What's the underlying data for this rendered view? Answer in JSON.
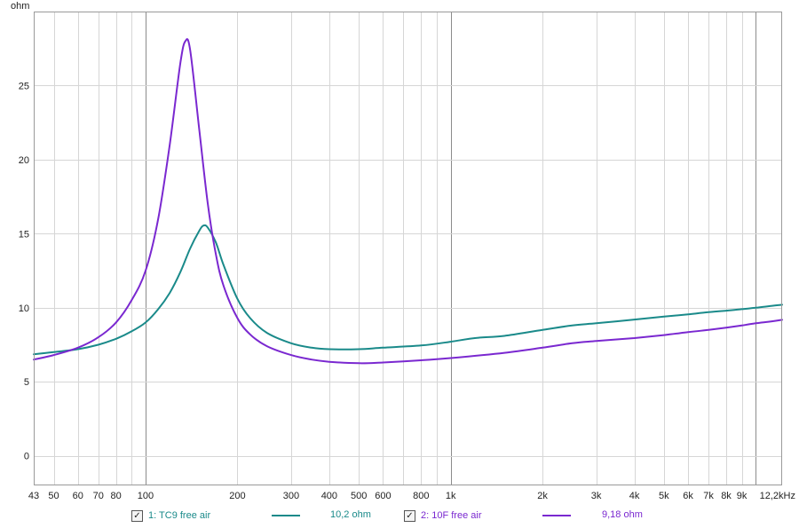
{
  "chart_data": {
    "type": "line",
    "y_unit_label": "ohm",
    "x_scale": "log",
    "xlim": [
      43,
      12200
    ],
    "ylim": [
      -2,
      30
    ],
    "grid": true,
    "x_ticks": [
      {
        "value": 43,
        "label": "43"
      },
      {
        "value": 50,
        "label": "50"
      },
      {
        "value": 60,
        "label": "60"
      },
      {
        "value": 70,
        "label": "70"
      },
      {
        "value": 80,
        "label": "80"
      },
      {
        "value": 100,
        "label": "100"
      },
      {
        "value": 200,
        "label": "200"
      },
      {
        "value": 300,
        "label": "300"
      },
      {
        "value": 400,
        "label": "400"
      },
      {
        "value": 500,
        "label": "500"
      },
      {
        "value": 600,
        "label": "600"
      },
      {
        "value": 800,
        "label": "800"
      },
      {
        "value": 1000,
        "label": "1k"
      },
      {
        "value": 2000,
        "label": "2k"
      },
      {
        "value": 3000,
        "label": "3k"
      },
      {
        "value": 4000,
        "label": "4k"
      },
      {
        "value": 5000,
        "label": "5k"
      },
      {
        "value": 6000,
        "label": "6k"
      },
      {
        "value": 7000,
        "label": "7k"
      },
      {
        "value": 8000,
        "label": "8k"
      },
      {
        "value": 9000,
        "label": "9k"
      },
      {
        "value": 12200,
        "label": "12,2kHz"
      }
    ],
    "x_major_lines": [
      100,
      1000,
      10000
    ],
    "x_minor_lines": [
      50,
      60,
      70,
      80,
      90,
      200,
      300,
      400,
      500,
      600,
      700,
      800,
      900,
      2000,
      3000,
      4000,
      5000,
      6000,
      7000,
      8000,
      9000
    ],
    "y_ticks": [
      0,
      5,
      10,
      15,
      20,
      25
    ],
    "series": [
      {
        "name": "1: TC9 free air",
        "legend_value": "10,2 ohm",
        "color": "#1a8a8a",
        "points": [
          [
            43,
            6.85
          ],
          [
            50,
            7.0
          ],
          [
            60,
            7.2
          ],
          [
            70,
            7.5
          ],
          [
            80,
            7.9
          ],
          [
            90,
            8.4
          ],
          [
            100,
            9.0
          ],
          [
            110,
            9.9
          ],
          [
            120,
            11.0
          ],
          [
            130,
            12.4
          ],
          [
            140,
            14.0
          ],
          [
            150,
            15.2
          ],
          [
            155,
            15.55
          ],
          [
            160,
            15.4
          ],
          [
            170,
            14.4
          ],
          [
            180,
            12.9
          ],
          [
            200,
            10.6
          ],
          [
            220,
            9.3
          ],
          [
            250,
            8.3
          ],
          [
            300,
            7.6
          ],
          [
            350,
            7.3
          ],
          [
            400,
            7.2
          ],
          [
            500,
            7.2
          ],
          [
            600,
            7.3
          ],
          [
            800,
            7.45
          ],
          [
            1000,
            7.7
          ],
          [
            1200,
            7.95
          ],
          [
            1500,
            8.1
          ],
          [
            2000,
            8.5
          ],
          [
            2500,
            8.8
          ],
          [
            3000,
            8.95
          ],
          [
            4000,
            9.2
          ],
          [
            5000,
            9.4
          ],
          [
            6000,
            9.55
          ],
          [
            7000,
            9.7
          ],
          [
            8000,
            9.8
          ],
          [
            9000,
            9.9
          ],
          [
            10000,
            10.0
          ],
          [
            11000,
            10.1
          ],
          [
            12200,
            10.2
          ]
        ]
      },
      {
        "name": "2: 10F free air",
        "legend_value": "9,18 ohm",
        "color": "#7a28d0",
        "points": [
          [
            43,
            6.5
          ],
          [
            50,
            6.8
          ],
          [
            60,
            7.3
          ],
          [
            70,
            8.0
          ],
          [
            80,
            9.0
          ],
          [
            90,
            10.5
          ],
          [
            100,
            12.5
          ],
          [
            110,
            16.0
          ],
          [
            120,
            21.0
          ],
          [
            130,
            26.5
          ],
          [
            135,
            28.0
          ],
          [
            140,
            27.4
          ],
          [
            150,
            22.0
          ],
          [
            160,
            17.0
          ],
          [
            170,
            13.6
          ],
          [
            180,
            11.5
          ],
          [
            200,
            9.3
          ],
          [
            220,
            8.2
          ],
          [
            250,
            7.4
          ],
          [
            300,
            6.8
          ],
          [
            350,
            6.5
          ],
          [
            400,
            6.35
          ],
          [
            500,
            6.25
          ],
          [
            600,
            6.3
          ],
          [
            800,
            6.45
          ],
          [
            1000,
            6.6
          ],
          [
            1500,
            6.95
          ],
          [
            2000,
            7.3
          ],
          [
            2500,
            7.6
          ],
          [
            3000,
            7.75
          ],
          [
            4000,
            7.95
          ],
          [
            5000,
            8.15
          ],
          [
            6000,
            8.35
          ],
          [
            7000,
            8.5
          ],
          [
            8000,
            8.65
          ],
          [
            9000,
            8.8
          ],
          [
            10000,
            8.95
          ],
          [
            11000,
            9.05
          ],
          [
            12200,
            9.18
          ]
        ]
      }
    ]
  },
  "legend": {
    "items": [
      {
        "checked_glyph": "✓",
        "name": "1: TC9 free air",
        "value": "10,2 ohm",
        "color": "#1a8a8a"
      },
      {
        "checked_glyph": "✓",
        "name": "2: 10F free air",
        "value": "9,18 ohm",
        "color": "#7a28d0"
      }
    ]
  }
}
